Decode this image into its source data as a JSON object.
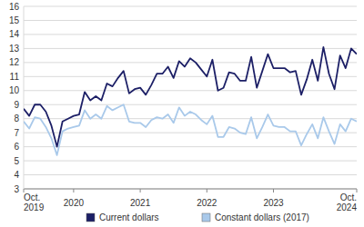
{
  "chart_data": {
    "type": "line",
    "categories": [
      "Oct. 2019",
      null,
      null,
      null,
      null,
      null,
      null,
      null,
      null,
      "2020",
      null,
      null,
      null,
      null,
      null,
      null,
      null,
      null,
      null,
      null,
      null,
      "2021",
      null,
      null,
      null,
      null,
      null,
      null,
      null,
      null,
      null,
      null,
      null,
      "2022",
      null,
      null,
      null,
      null,
      null,
      null,
      null,
      null,
      null,
      null,
      null,
      "2023",
      null,
      null,
      null,
      null,
      null,
      null,
      null,
      null,
      null,
      null,
      null,
      null,
      null,
      null,
      "Oct. 2024"
    ],
    "series": [
      {
        "name": "Current dollars",
        "color": "#1c1f66",
        "values": [
          8.7,
          8.2,
          9.0,
          9.0,
          8.5,
          7.5,
          6.0,
          7.8,
          8.0,
          8.2,
          8.3,
          9.9,
          9.3,
          9.6,
          9.3,
          10.5,
          10.3,
          10.9,
          11.4,
          9.8,
          10.1,
          10.2,
          9.7,
          10.4,
          11.2,
          11.2,
          11.7,
          10.9,
          12.1,
          11.7,
          12.3,
          12.0,
          11.5,
          11.0,
          12.2,
          10.0,
          10.2,
          11.3,
          11.2,
          10.7,
          10.7,
          12.4,
          10.2,
          11.4,
          12.6,
          11.6,
          11.6,
          11.6,
          11.3,
          11.4,
          9.7,
          10.8,
          12.2,
          10.7,
          13.1,
          11.2,
          10.1,
          12.5,
          11.6,
          13.0,
          12.6
        ]
      },
      {
        "name": "Constant dollars (2017)",
        "color": "#a9c9ea",
        "values": [
          7.8,
          7.3,
          8.1,
          8.0,
          7.4,
          6.6,
          5.4,
          7.1,
          7.3,
          7.4,
          7.5,
          8.6,
          8.0,
          8.3,
          8.0,
          8.9,
          8.6,
          8.8,
          9.0,
          7.8,
          7.7,
          7.7,
          7.4,
          7.9,
          8.1,
          8.0,
          8.3,
          7.7,
          8.8,
          8.2,
          8.5,
          8.3,
          7.9,
          7.6,
          8.2,
          6.7,
          6.7,
          7.4,
          7.3,
          7.0,
          6.9,
          8.1,
          6.6,
          7.4,
          8.3,
          7.5,
          7.4,
          7.4,
          7.1,
          7.1,
          6.1,
          6.9,
          7.6,
          6.6,
          8.1,
          7.1,
          6.2,
          7.6,
          7.1,
          8.0,
          7.8
        ]
      }
    ],
    "ylim": [
      3,
      16
    ],
    "yticks": [
      3,
      4,
      5,
      6,
      7,
      8,
      9,
      10,
      11,
      12,
      13,
      14,
      15,
      16
    ],
    "grid": true,
    "legend": "bottom"
  }
}
